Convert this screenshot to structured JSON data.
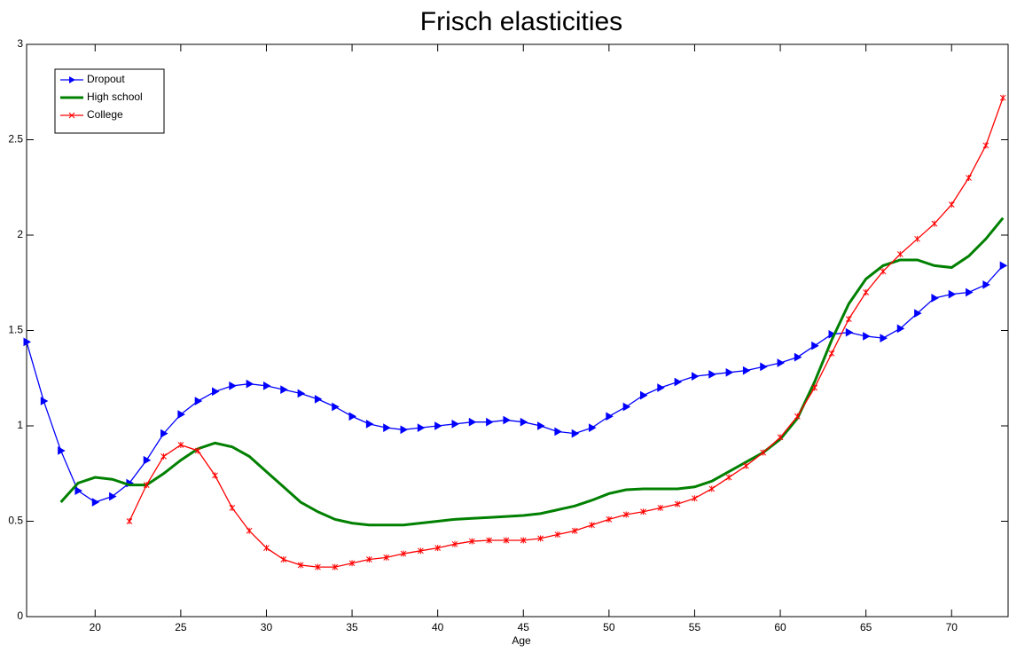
{
  "chart_data": {
    "type": "line",
    "title": "Frisch elasticities",
    "x_label": "Age",
    "x": [
      16,
      17,
      18,
      19,
      20,
      21,
      22,
      23,
      24,
      25,
      26,
      27,
      28,
      29,
      30,
      31,
      32,
      33,
      34,
      35,
      36,
      37,
      38,
      39,
      40,
      41,
      42,
      43,
      44,
      45,
      46,
      47,
      48,
      49,
      50,
      51,
      52,
      53,
      54,
      55,
      56,
      57,
      58,
      59,
      60,
      61,
      62,
      63,
      64,
      65,
      66,
      67,
      68,
      69,
      70,
      71,
      72,
      73
    ],
    "series": [
      {
        "name": "Dropout",
        "color": "#0000ff",
        "marker": "triangle-right",
        "values": [
          1.44,
          1.13,
          0.87,
          0.66,
          0.6,
          0.63,
          0.7,
          0.82,
          0.96,
          1.06,
          1.13,
          1.18,
          1.21,
          1.22,
          1.21,
          1.19,
          1.17,
          1.14,
          1.1,
          1.05,
          1.01,
          0.99,
          0.98,
          0.99,
          1.0,
          1.01,
          1.02,
          1.02,
          1.03,
          1.02,
          1.0,
          0.97,
          0.96,
          0.99,
          1.05,
          1.1,
          1.16,
          1.2,
          1.23,
          1.26,
          1.27,
          1.28,
          1.29,
          1.31,
          1.33,
          1.36,
          1.42,
          1.48,
          1.49,
          1.47,
          1.46,
          1.51,
          1.59,
          1.67,
          1.69,
          1.7,
          1.74,
          1.84
        ]
      },
      {
        "name": "High school",
        "color": "#008000",
        "marker": "none",
        "values": [
          null,
          null,
          0.6,
          0.7,
          0.73,
          0.72,
          0.69,
          0.69,
          0.75,
          0.82,
          0.88,
          0.91,
          0.89,
          0.84,
          0.76,
          0.68,
          0.6,
          0.55,
          0.51,
          0.49,
          0.48,
          0.48,
          0.48,
          0.49,
          0.5,
          0.51,
          0.515,
          0.52,
          0.525,
          0.53,
          0.54,
          0.56,
          0.58,
          0.61,
          0.645,
          0.665,
          0.67,
          0.67,
          0.67,
          0.68,
          0.71,
          0.76,
          0.81,
          0.86,
          0.93,
          1.04,
          1.23,
          1.45,
          1.64,
          1.77,
          1.84,
          1.87,
          1.87,
          1.84,
          1.83,
          1.89,
          1.98,
          2.09
        ]
      },
      {
        "name": "College",
        "color": "#ff0000",
        "marker": "x",
        "values": [
          null,
          null,
          null,
          null,
          null,
          null,
          0.5,
          0.69,
          0.84,
          0.9,
          0.87,
          0.74,
          0.57,
          0.45,
          0.36,
          0.3,
          0.27,
          0.26,
          0.26,
          0.28,
          0.3,
          0.31,
          0.33,
          0.345,
          0.36,
          0.38,
          0.395,
          0.4,
          0.4,
          0.4,
          0.41,
          0.43,
          0.45,
          0.48,
          0.51,
          0.535,
          0.55,
          0.57,
          0.59,
          0.62,
          0.67,
          0.73,
          0.79,
          0.86,
          0.94,
          1.05,
          1.2,
          1.38,
          1.56,
          1.7,
          1.81,
          1.9,
          1.98,
          2.06,
          2.16,
          2.3,
          2.47,
          2.72
        ]
      }
    ],
    "xlim": [
      16,
      73.3
    ],
    "ylim": [
      0,
      3
    ],
    "xticks": [
      20,
      25,
      30,
      35,
      40,
      45,
      50,
      55,
      60,
      65,
      70
    ],
    "yticks": [
      0,
      0.5,
      1,
      1.5,
      2,
      2.5,
      3
    ],
    "legend": "upper-left",
    "grid": false
  }
}
